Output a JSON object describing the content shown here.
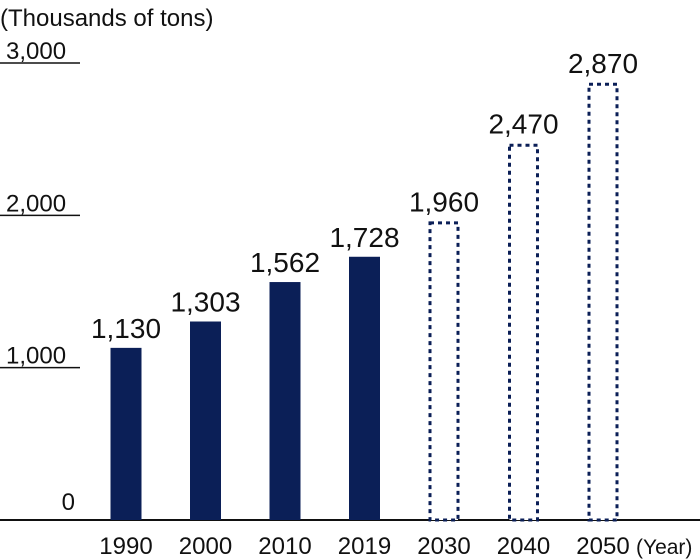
{
  "chart_data": {
    "type": "bar",
    "title": "",
    "ylabel": "(Thousands of tons)",
    "xlabel": "(Year)",
    "ylim": [
      0,
      3000
    ],
    "yticks": [
      {
        "value": 0,
        "label": "0"
      },
      {
        "value": 1000,
        "label": "1,000"
      },
      {
        "value": 2000,
        "label": "2,000"
      },
      {
        "value": 3000,
        "label": "3,000"
      }
    ],
    "categories": [
      "1990",
      "2000",
      "2010",
      "2019",
      "2030",
      "2040",
      "2050"
    ],
    "values": [
      1130,
      1303,
      1562,
      1728,
      1960,
      2470,
      2870
    ],
    "value_labels": [
      "1,130",
      "1,303",
      "1,562",
      "1,728",
      "1,960",
      "2,470",
      "2,870"
    ],
    "bar_styles": [
      "solid",
      "solid",
      "solid",
      "solid",
      "dotted",
      "dotted",
      "dotted"
    ],
    "colors": {
      "solid": "#0b1f57",
      "dotted": "#0b1f57",
      "axis": "#111111"
    },
    "grid": false
  }
}
